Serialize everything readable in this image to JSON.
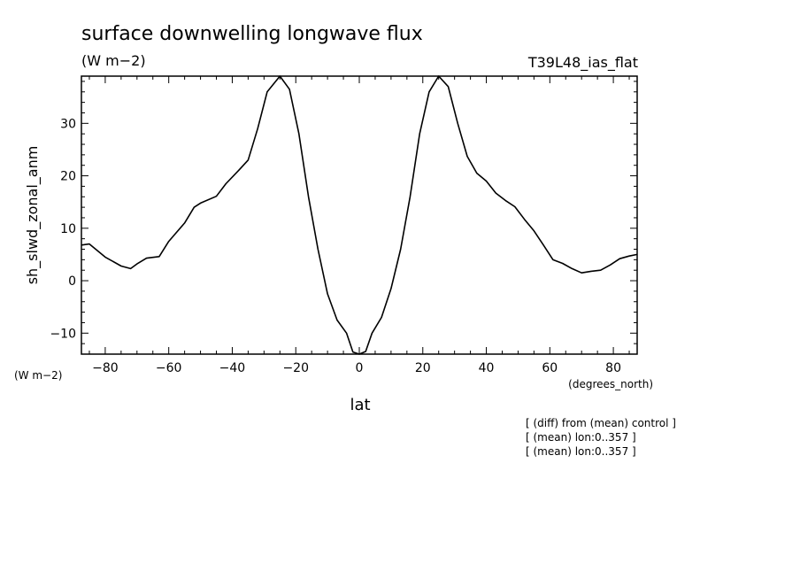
{
  "chart_data": {
    "type": "line",
    "title": "surface downwelling longwave flux",
    "subtitle": "(W m−2)",
    "run_label": "T39L48_ias_flat",
    "ylabel": "sh_slwd_zonal_anm",
    "yunits": "(W m−2)",
    "xlabel": "lat",
    "xunits": "(degrees_north)",
    "xlim": [
      -87.5,
      87.5
    ],
    "ylim": [
      -14,
      39
    ],
    "xticks": [
      -80,
      -60,
      -40,
      -20,
      0,
      20,
      40,
      60,
      80
    ],
    "yticks": [
      -10,
      0,
      10,
      20,
      30
    ],
    "grid": false,
    "x": [
      -87.5,
      -85,
      -80,
      -75,
      -72,
      -70,
      -67,
      -63,
      -60,
      -55,
      -52,
      -50,
      -45,
      -42,
      -38,
      -35,
      -32,
      -29,
      -25,
      -22,
      -19,
      -16,
      -13,
      -10,
      -7,
      -4,
      -2,
      0,
      2,
      4,
      7,
      10,
      13,
      16,
      19,
      22,
      25,
      28,
      31,
      34,
      37,
      40,
      43,
      46,
      49,
      52,
      55,
      58,
      61,
      64,
      67,
      70,
      73,
      76,
      79,
      82,
      85,
      87.5
    ],
    "y": [
      6.8,
      7.0,
      4.5,
      2.8,
      2.3,
      3.2,
      4.3,
      4.6,
      7.5,
      11.0,
      14.0,
      14.8,
      16.1,
      18.5,
      21.0,
      23.0,
      29.0,
      36.0,
      39.0,
      36.5,
      28.0,
      16.0,
      6.0,
      -2.5,
      -7.5,
      -10.0,
      -13.6,
      -14.0,
      -13.5,
      -10.0,
      -7.0,
      -1.5,
      6.0,
      16.0,
      28.0,
      36.0,
      39.0,
      37.0,
      30.0,
      23.7,
      20.5,
      19.0,
      16.7,
      15.3,
      14.1,
      11.7,
      9.5,
      6.8,
      4.0,
      3.3,
      2.3,
      1.5,
      1.8,
      2.0,
      3.0,
      4.2,
      4.7,
      5.0
    ],
    "footnotes": [
      "[ (diff) from (mean) control ]",
      "[ (mean) lon:0..357 ]",
      "[ (mean) lon:0..357 ]"
    ]
  }
}
